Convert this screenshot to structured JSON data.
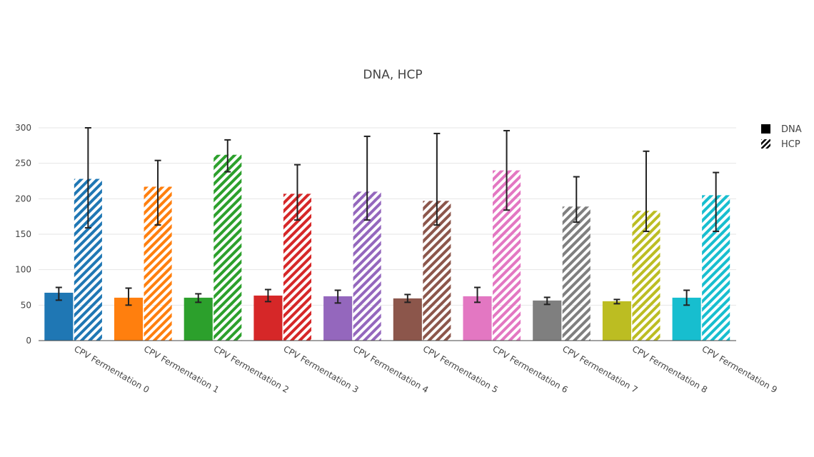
{
  "chart_data": {
    "type": "bar",
    "title": "DNA, HCP",
    "xlabel": "",
    "ylabel": "",
    "ylim": [
      0,
      300
    ],
    "yticks": [
      0,
      50,
      100,
      150,
      200,
      250,
      300
    ],
    "grid": true,
    "legend_position": "top-right",
    "categories": [
      "CPV Fermentation 0",
      "CPV Fermentation 1",
      "CPV Fermentation 2",
      "CPV Fermentation 3",
      "CPV Fermentation 4",
      "CPV Fermentation 5",
      "CPV Fermentation 6",
      "CPV Fermentation 7",
      "CPV Fermentation 8",
      "CPV Fermentation 9"
    ],
    "colors": [
      "#1f77b4",
      "#ff7f0e",
      "#2ca02c",
      "#d62728",
      "#9467bd",
      "#8c564b",
      "#e377c2",
      "#7f7f7f",
      "#bcbd22",
      "#17becf"
    ],
    "series": [
      {
        "name": "DNA",
        "pattern": "solid",
        "values": [
          67,
          60,
          60,
          63,
          62,
          59,
          62,
          56,
          55,
          60
        ],
        "error_low": [
          57,
          50,
          54,
          55,
          53,
          54,
          54,
          51,
          52,
          50
        ],
        "error_high": [
          75,
          74,
          66,
          72,
          71,
          65,
          75,
          61,
          58,
          71
        ]
      },
      {
        "name": "HCP",
        "pattern": "hatched",
        "values": [
          228,
          217,
          262,
          207,
          210,
          197,
          240,
          189,
          183,
          205
        ],
        "error_low": [
          159,
          163,
          238,
          170,
          170,
          163,
          184,
          167,
          154,
          154
        ],
        "error_high": [
          300,
          254,
          283,
          248,
          288,
          292,
          296,
          231,
          267,
          237
        ]
      }
    ]
  }
}
